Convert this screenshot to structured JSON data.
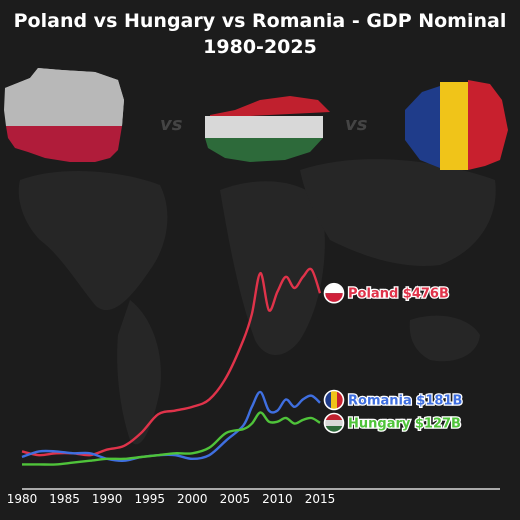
{
  "chart_data": {
    "type": "line",
    "title": "Poland vs Hungary vs Romania - GDP Nominal 1980-2025",
    "x": [
      1980,
      1982,
      1984,
      1986,
      1988,
      1990,
      1992,
      1994,
      1996,
      1998,
      2000,
      2002,
      2004,
      2006,
      2007,
      2008,
      2009,
      2010,
      2011,
      2012,
      2013,
      2014,
      2015
    ],
    "xticks": [
      "1980",
      "1985",
      "1990",
      "1995",
      "2000",
      "2005",
      "2010",
      "2015"
    ],
    "xlim": [
      1980,
      2020
    ],
    "ylim": [
      0,
      560
    ],
    "series": [
      {
        "name": "Poland",
        "end_label": "Poland $476B",
        "color": "#e0334a",
        "values": [
          50,
          40,
          45,
          45,
          40,
          55,
          65,
          100,
          150,
          160,
          170,
          190,
          250,
          350,
          420,
          530,
          430,
          480,
          520,
          490,
          520,
          540,
          476
        ]
      },
      {
        "name": "Romania",
        "end_label": "Romania $181B",
        "color": "#3f6fe0",
        "values": [
          35,
          50,
          50,
          45,
          45,
          30,
          25,
          35,
          40,
          40,
          30,
          40,
          80,
          120,
          170,
          210,
          160,
          160,
          190,
          170,
          190,
          200,
          181
        ]
      },
      {
        "name": "Hungary",
        "end_label": "Hungary $127B",
        "color": "#4fc33a",
        "values": [
          15,
          15,
          15,
          20,
          25,
          30,
          30,
          35,
          40,
          45,
          45,
          60,
          100,
          110,
          125,
          155,
          130,
          130,
          140,
          125,
          135,
          140,
          127
        ]
      }
    ],
    "legend": "line-end labels with flag markers"
  },
  "header_flags": [
    {
      "country": "Poland",
      "colors": [
        "#b8b8b8",
        "#b01c3a"
      ]
    },
    {
      "country": "Hungary",
      "colors": [
        "#c0202e",
        "#d8d8d8",
        "#2d6a3a"
      ]
    },
    {
      "country": "Romania",
      "colors": [
        "#1f3c8a",
        "#f0c419",
        "#c8202e"
      ]
    }
  ],
  "vs_separators": [
    "vs",
    "vs"
  ]
}
